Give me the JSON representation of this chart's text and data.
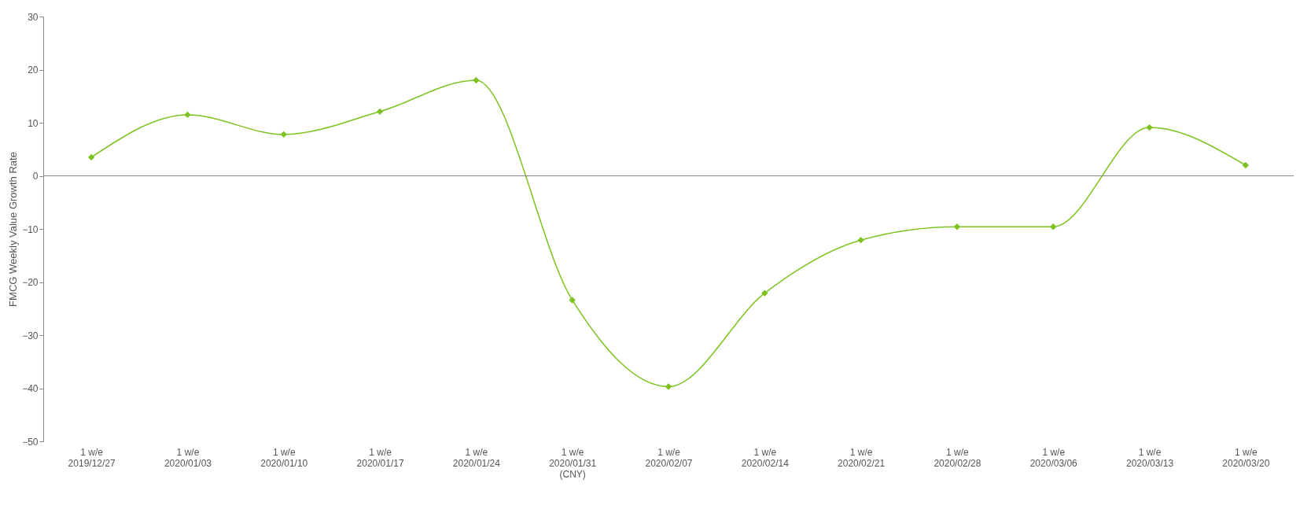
{
  "chart_data": {
    "type": "line",
    "ylabel": "FMCG Weekly  Value Growth Rate",
    "categories": [
      "1 w/e\n2019/12/27",
      "1 w/e\n2020/01/03",
      "1 w/e\n2020/01/10",
      "1 w/e\n2020/01/17",
      "1 w/e\n2020/01/24",
      "1 w/e\n2020/01/31\n(CNY)",
      "1 w/e\n2020/02/07",
      "1 w/e\n2020/02/14",
      "1 w/e\n2020/02/21",
      "1 w/e\n2020/02/28",
      "1 w/e\n2020/03/06",
      "1 w/e\n2020/03/13",
      "1 w/e\n2020/03/20"
    ],
    "series": [
      {
        "color": "#7dc21e",
        "values": [
          3.5,
          11.5,
          7.8,
          12.1,
          18.0,
          -23.4,
          -39.7,
          -22.1,
          -12.1,
          -9.6,
          -9.6,
          9.1,
          2.0
        ]
      }
    ],
    "ylim": [
      -50,
      30
    ],
    "yticks": [
      -50,
      -40,
      -30,
      -20,
      -10,
      0,
      10,
      20,
      30
    ],
    "ref_lines": [
      {
        "axis": "y",
        "value": 0,
        "color": "#888888"
      }
    ],
    "grid": false,
    "marker": "diamond",
    "line_style": "solid"
  }
}
